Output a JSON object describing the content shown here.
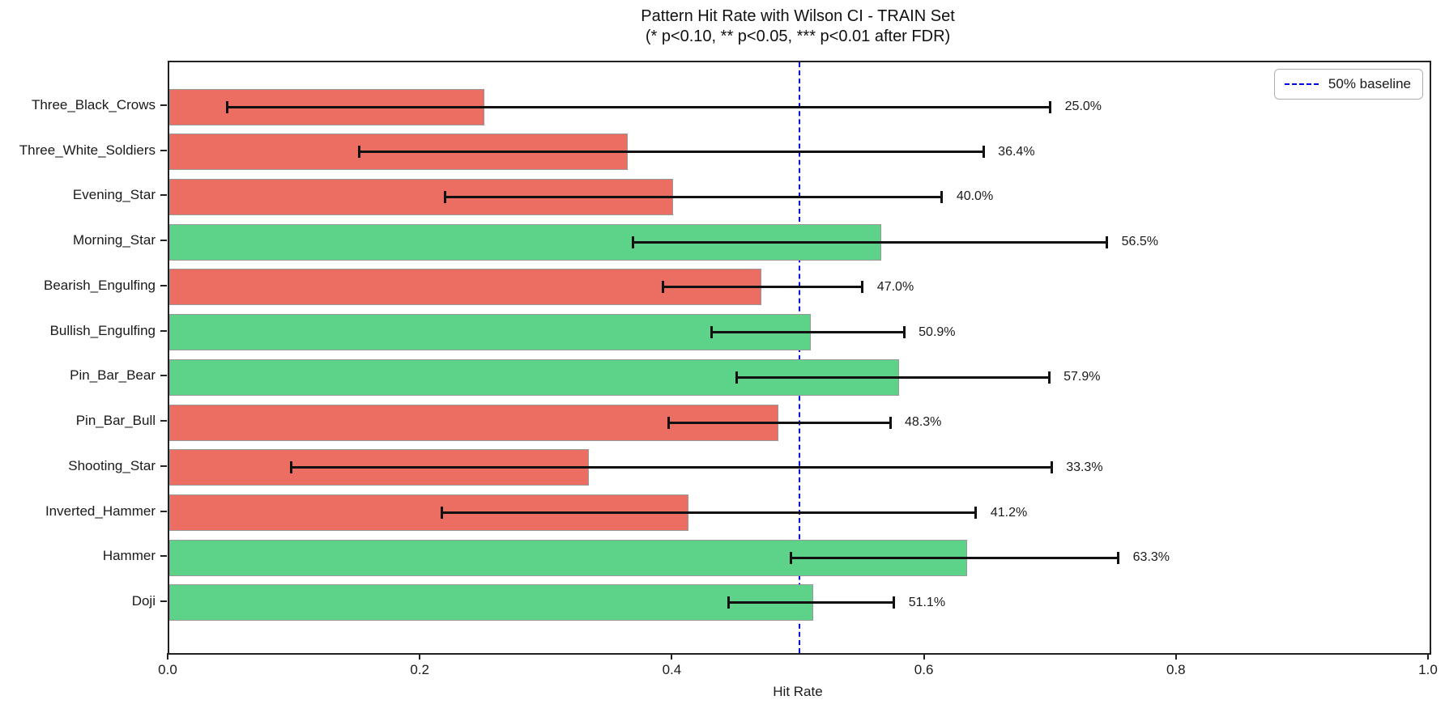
{
  "chart_data": {
    "type": "bar",
    "orientation": "horizontal",
    "title": "Pattern Hit Rate with Wilson CI - TRAIN Set",
    "subtitle": "(* p<0.10, ** p<0.05, *** p<0.01 after FDR)",
    "xlabel": "Hit Rate",
    "xlim": [
      0.0,
      1.0
    ],
    "xtick_labels": [
      "0.0",
      "0.2",
      "0.4",
      "0.6",
      "0.8",
      "1.0"
    ],
    "grid": false,
    "legend_position": "top-right",
    "baseline": {
      "value": 0.5,
      "label": "50% baseline",
      "color": "#0000e6",
      "style": "dashed"
    },
    "colors": {
      "above_baseline": "#5dd38a",
      "below_baseline": "#ec6e63",
      "error_bar": "#111111",
      "bar_edge": "#999999"
    },
    "rows": [
      {
        "category": "Three_Black_Crows",
        "hit_rate": 0.25,
        "label": "25.0%",
        "ci_low": 0.046,
        "ci_high": 0.699,
        "color_key": "below_baseline"
      },
      {
        "category": "Three_White_Soldiers",
        "hit_rate": 0.364,
        "label": "36.4%",
        "ci_low": 0.151,
        "ci_high": 0.646,
        "color_key": "below_baseline"
      },
      {
        "category": "Evening_Star",
        "hit_rate": 0.4,
        "label": "40.0%",
        "ci_low": 0.219,
        "ci_high": 0.613,
        "color_key": "below_baseline"
      },
      {
        "category": "Morning_Star",
        "hit_rate": 0.565,
        "label": "56.5%",
        "ci_low": 0.368,
        "ci_high": 0.744,
        "color_key": "above_baseline"
      },
      {
        "category": "Bearish_Engulfing",
        "hit_rate": 0.47,
        "label": "47.0%",
        "ci_low": 0.392,
        "ci_high": 0.55,
        "color_key": "below_baseline"
      },
      {
        "category": "Bullish_Engulfing",
        "hit_rate": 0.509,
        "label": "50.9%",
        "ci_low": 0.43,
        "ci_high": 0.583,
        "color_key": "above_baseline"
      },
      {
        "category": "Pin_Bar_Bear",
        "hit_rate": 0.579,
        "label": "57.9%",
        "ci_low": 0.45,
        "ci_high": 0.698,
        "color_key": "above_baseline"
      },
      {
        "category": "Pin_Bar_Bull",
        "hit_rate": 0.483,
        "label": "48.3%",
        "ci_low": 0.396,
        "ci_high": 0.572,
        "color_key": "below_baseline"
      },
      {
        "category": "Shooting_Star",
        "hit_rate": 0.333,
        "label": "33.3%",
        "ci_low": 0.097,
        "ci_high": 0.7,
        "color_key": "below_baseline"
      },
      {
        "category": "Inverted_Hammer",
        "hit_rate": 0.412,
        "label": "41.2%",
        "ci_low": 0.216,
        "ci_high": 0.64,
        "color_key": "below_baseline"
      },
      {
        "category": "Hammer",
        "hit_rate": 0.633,
        "label": "63.3%",
        "ci_low": 0.493,
        "ci_high": 0.753,
        "color_key": "above_baseline"
      },
      {
        "category": "Doji",
        "hit_rate": 0.511,
        "label": "51.1%",
        "ci_low": 0.444,
        "ci_high": 0.575,
        "color_key": "above_baseline"
      }
    ]
  }
}
